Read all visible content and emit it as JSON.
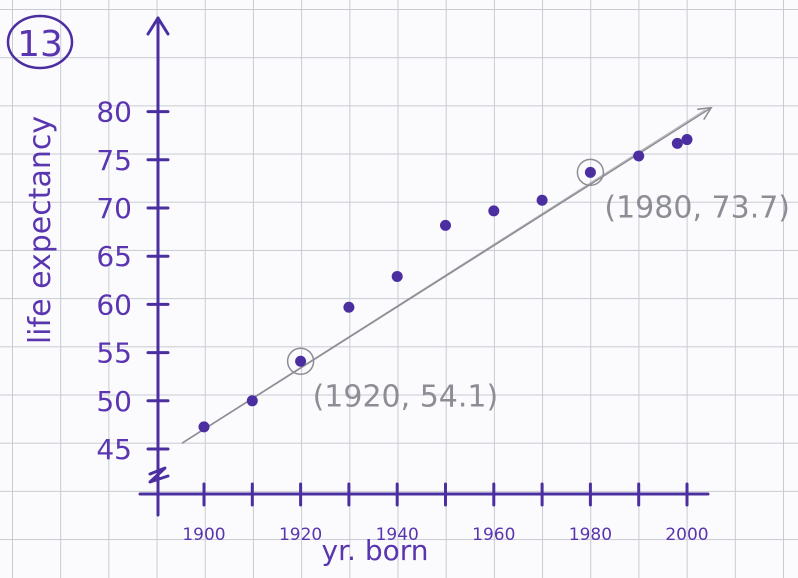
{
  "problem_number": "13",
  "chart_data": {
    "type": "scatter",
    "xlabel": "yr. born",
    "ylabel": "life expectancy",
    "xlim": [
      1900,
      2000
    ],
    "ylim": [
      45,
      80
    ],
    "x_ticks": [
      "1900",
      "1920",
      "1940",
      "1960",
      "1980",
      "2000"
    ],
    "x_tick_values": [
      1900,
      1910,
      1920,
      1930,
      1940,
      1950,
      1960,
      1970,
      1980,
      1990,
      2000
    ],
    "y_ticks": [
      "45",
      "50",
      "55",
      "60",
      "65",
      "70",
      "75",
      "80"
    ],
    "y_tick_values": [
      45,
      50,
      55,
      60,
      65,
      70,
      75,
      80
    ],
    "axis_break": true,
    "grid": true,
    "points": [
      {
        "x": 1900,
        "y": 47.3
      },
      {
        "x": 1910,
        "y": 50.0
      },
      {
        "x": 1920,
        "y": 54.1
      },
      {
        "x": 1930,
        "y": 59.7
      },
      {
        "x": 1940,
        "y": 62.9
      },
      {
        "x": 1950,
        "y": 68.2
      },
      {
        "x": 1960,
        "y": 69.7
      },
      {
        "x": 1970,
        "y": 70.8
      },
      {
        "x": 1980,
        "y": 73.7
      },
      {
        "x": 1990,
        "y": 75.4
      },
      {
        "x": 1998,
        "y": 76.7
      },
      {
        "x": 2000,
        "y": 77.1
      }
    ],
    "trend_line": {
      "from": [
        1900,
        45.6
      ],
      "to": [
        2005,
        80.4
      ]
    },
    "circled_points": [
      {
        "x": 1920,
        "y": 54.1,
        "label": "(1920, 54.1)"
      },
      {
        "x": 1980,
        "y": 73.7,
        "label": "(1980, 73.7)"
      }
    ],
    "colors": {
      "ink": "#4b2fa0",
      "label_ink": "#5a35b0",
      "pencil": "#8d8d95",
      "grid": "#c9cbd3"
    }
  }
}
